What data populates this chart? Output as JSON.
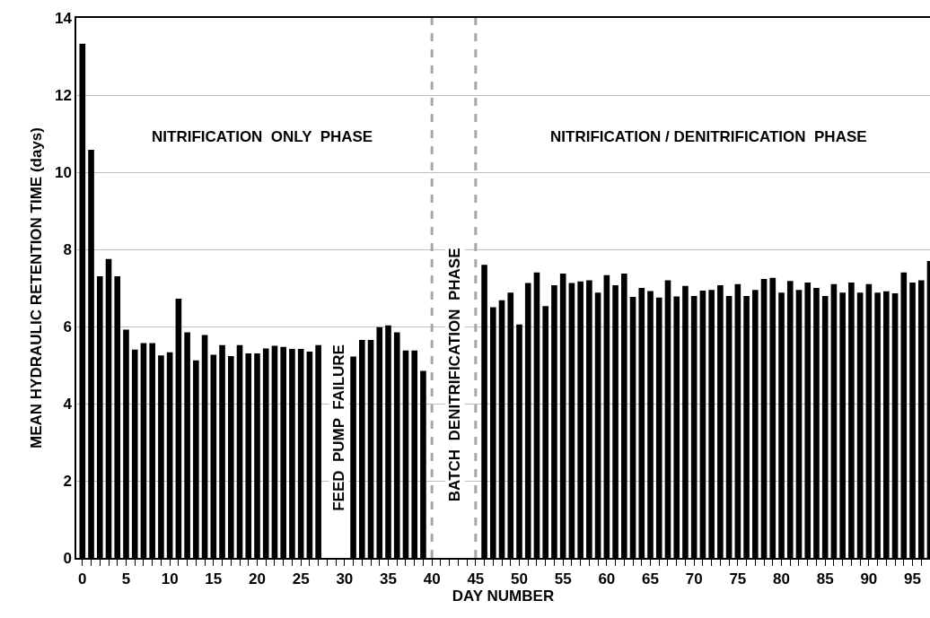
{
  "chart_data": {
    "type": "bar",
    "xlabel": "DAY NUMBER",
    "ylabel": "MEAN HYDRAULIC RETENTION TIME (days)",
    "color": "#000000",
    "x": [
      0,
      1,
      2,
      3,
      4,
      5,
      6,
      7,
      8,
      9,
      10,
      11,
      12,
      13,
      14,
      15,
      16,
      17,
      18,
      19,
      20,
      21,
      22,
      23,
      24,
      25,
      26,
      27,
      31,
      32,
      33,
      34,
      35,
      36,
      37,
      38,
      39,
      46,
      47,
      48,
      49,
      50,
      51,
      52,
      53,
      54,
      55,
      56,
      57,
      58,
      59,
      60,
      61,
      62,
      63,
      64,
      65,
      66,
      67,
      68,
      69,
      70,
      71,
      72,
      73,
      74,
      75,
      76,
      77,
      78,
      79,
      80,
      81,
      82,
      83,
      84,
      85,
      86,
      87,
      88,
      89,
      90,
      91,
      92,
      93,
      94,
      95,
      96,
      97
    ],
    "values": [
      13.33,
      10.58,
      7.3,
      7.75,
      7.3,
      5.92,
      5.4,
      5.57,
      5.57,
      5.25,
      5.33,
      6.72,
      5.85,
      5.12,
      5.78,
      5.27,
      5.52,
      5.23,
      5.52,
      5.3,
      5.3,
      5.43,
      5.5,
      5.47,
      5.42,
      5.42,
      5.35,
      5.52,
      5.22,
      5.65,
      5.65,
      5.98,
      6.03,
      5.85,
      5.38,
      5.38,
      4.85,
      7.6,
      6.5,
      6.68,
      6.88,
      6.05,
      7.13,
      7.4,
      6.53,
      7.07,
      7.37,
      7.13,
      7.17,
      7.2,
      6.88,
      7.33,
      7.07,
      7.37,
      6.77,
      7.0,
      6.92,
      6.75,
      7.2,
      6.78,
      7.05,
      6.79,
      6.93,
      6.95,
      7.07,
      6.79,
      7.1,
      6.79,
      6.95,
      7.23,
      7.26,
      6.88,
      7.18,
      6.95,
      7.14,
      7.0,
      6.79,
      7.1,
      6.88,
      7.14,
      6.88,
      7.1,
      6.88,
      6.91,
      6.86,
      7.4,
      7.14,
      7.2,
      7.7
    ],
    "xlim": [
      -0.7,
      97
    ],
    "xticks": [
      0,
      {
        "value": 1,
        "label": null
      },
      {
        "value": 2,
        "label": null
      },
      {
        "value": 3,
        "label": null
      },
      {
        "value": 4,
        "label": null
      },
      5,
      {
        "value": 6,
        "label": null
      },
      {
        "value": 7,
        "label": null
      },
      {
        "value": 8,
        "label": null
      },
      {
        "value": 9,
        "label": null
      },
      10,
      {
        "value": 11,
        "label": null
      },
      {
        "value": 12,
        "label": null
      },
      {
        "value": 13,
        "label": null
      },
      {
        "value": 14,
        "label": null
      },
      15,
      {
        "value": 16,
        "label": null
      },
      {
        "value": 17,
        "label": null
      },
      {
        "value": 18,
        "label": null
      },
      {
        "value": 19,
        "label": null
      },
      20,
      {
        "value": 21,
        "label": null
      },
      {
        "value": 22,
        "label": null
      },
      {
        "value": 23,
        "label": null
      },
      {
        "value": 24,
        "label": null
      },
      25,
      {
        "value": 26,
        "label": null
      },
      {
        "value": 27,
        "label": null
      },
      {
        "value": 28,
        "label": null
      },
      {
        "value": 29,
        "label": null
      },
      30,
      {
        "value": 31,
        "label": null
      },
      {
        "value": 32,
        "label": null
      },
      {
        "value": 33,
        "label": null
      },
      {
        "value": 34,
        "label": null
      },
      35,
      {
        "value": 36,
        "label": null
      },
      {
        "value": 37,
        "label": null
      },
      {
        "value": 38,
        "label": null
      },
      {
        "value": 39,
        "label": null
      },
      40,
      {
        "value": 41,
        "label": null
      },
      {
        "value": 42,
        "label": null
      },
      {
        "value": 43,
        "label": null
      },
      {
        "value": 44,
        "label": null
      },
      45,
      {
        "value": 46,
        "label": null
      },
      {
        "value": 47,
        "label": null
      },
      {
        "value": 48,
        "label": null
      },
      {
        "value": 49,
        "label": null
      },
      50,
      {
        "value": 51,
        "label": null
      },
      {
        "value": 52,
        "label": null
      },
      {
        "value": 53,
        "label": null
      },
      {
        "value": 54,
        "label": null
      },
      55,
      {
        "value": 56,
        "label": null
      },
      {
        "value": 57,
        "label": null
      },
      {
        "value": 58,
        "label": null
      },
      {
        "value": 59,
        "label": null
      },
      60,
      {
        "value": 61,
        "label": null
      },
      {
        "value": 62,
        "label": null
      },
      {
        "value": 63,
        "label": null
      },
      {
        "value": 64,
        "label": null
      },
      65,
      {
        "value": 66,
        "label": null
      },
      {
        "value": 67,
        "label": null
      },
      {
        "value": 68,
        "label": null
      },
      {
        "value": 69,
        "label": null
      },
      70,
      {
        "value": 71,
        "label": null
      },
      {
        "value": 72,
        "label": null
      },
      {
        "value": 73,
        "label": null
      },
      {
        "value": 74,
        "label": null
      },
      75,
      {
        "value": 76,
        "label": null
      },
      {
        "value": 77,
        "label": null
      },
      {
        "value": 78,
        "label": null
      },
      {
        "value": 79,
        "label": null
      },
      80,
      {
        "value": 81,
        "label": null
      },
      {
        "value": 82,
        "label": null
      },
      {
        "value": 83,
        "label": null
      },
      {
        "value": 84,
        "label": null
      },
      85,
      {
        "value": 86,
        "label": null
      },
      {
        "value": 87,
        "label": null
      },
      {
        "value": 88,
        "label": null
      },
      {
        "value": 89,
        "label": null
      },
      90,
      {
        "value": 91,
        "label": null
      },
      {
        "value": 92,
        "label": null
      },
      {
        "value": 93,
        "label": null
      },
      {
        "value": 94,
        "label": null
      },
      95,
      {
        "value": 96,
        "label": null
      }
    ],
    "ylim": [
      0,
      14
    ],
    "yticks": [
      0,
      2,
      4,
      6,
      8,
      10,
      12,
      14
    ],
    "grid": "y",
    "ref_lines": [
      {
        "axis": "x",
        "value": 40,
        "color": "#a6a6a6",
        "line_style": "dashed"
      },
      {
        "axis": "x",
        "value": 45,
        "color": "#a6a6a6",
        "line_style": "dashed"
      }
    ],
    "annotations": [
      "NITRIFICATION  ONLY  PHASE",
      "NITRIFICATION / DENITRIFICATION  PHASE",
      "FEED  PUMP  FAILURE",
      "BATCH  DENITRIFICATION  PHASE"
    ]
  }
}
